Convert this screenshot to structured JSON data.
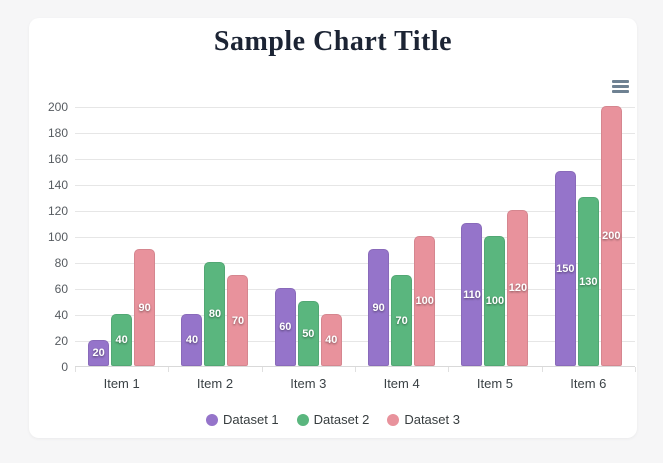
{
  "window": {
    "page_background": "#f6f6f7",
    "card_background": "#ffffff"
  },
  "header": {
    "title": "Sample Chart Title",
    "title_color": "#1c2434"
  },
  "toolbar": {
    "menu_icon": "hamburger-menu-icon",
    "menu_icon_color": "#6e8192"
  },
  "chart_data": {
    "type": "bar",
    "title": "Sample Chart Title",
    "categories": [
      "Item 1",
      "Item 2",
      "Item 3",
      "Item 4",
      "Item 5",
      "Item 6"
    ],
    "series": [
      {
        "name": "Dataset 1",
        "color": "#9574ca",
        "values": [
          20,
          40,
          60,
          90,
          110,
          150
        ]
      },
      {
        "name": "Dataset 2",
        "color": "#5ab67e",
        "values": [
          40,
          80,
          50,
          70,
          100,
          130
        ]
      },
      {
        "name": "Dataset 3",
        "color": "#e8929c",
        "values": [
          90,
          70,
          40,
          100,
          120,
          200
        ]
      }
    ],
    "xlabel": "",
    "ylabel": "",
    "ylim": [
      0,
      200
    ],
    "ytick_step": 20,
    "yticks": [
      0,
      20,
      40,
      60,
      80,
      100,
      120,
      140,
      160,
      180,
      200
    ],
    "grid": true,
    "grid_color": "#e6e6e6",
    "axis_line_color": "#d9d9d9",
    "axis_label_color": "#565b60",
    "legend_position": "bottom",
    "data_labels": "values in white centered inside bars"
  }
}
